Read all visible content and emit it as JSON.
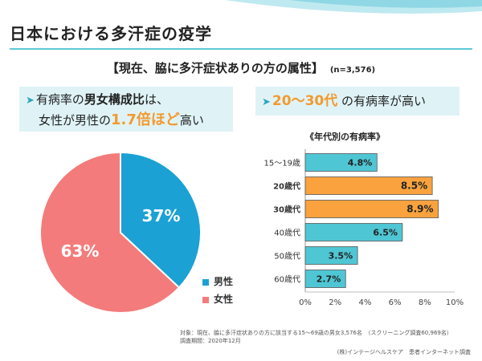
{
  "title": "日本における多汗症の疫学",
  "subtitle": {
    "text": "【現在、脇に多汗症状ありの方の属性】",
    "n": "(n=3,576)"
  },
  "callout_left": {
    "line1_pre": "有病率の",
    "line1_bold": "男女構成比",
    "line1_post": "は、",
    "line2_pre": "女性が男性の",
    "line2_highlight": "1.7倍ほど",
    "line2_post": "高い"
  },
  "callout_right": {
    "highlight": "20～30代",
    "post": " の有病率が高い"
  },
  "colors": {
    "accent": "#5fc8d8",
    "male": "#1ba1d4",
    "female": "#f47b7b",
    "bar_blue": "#4fc6d4",
    "bar_orange": "#f9a23e",
    "callout_bg": "#dff3f7",
    "orange_text": "#f29a2e"
  },
  "chart_data": [
    {
      "type": "pie",
      "labels": [
        "男性",
        "女性"
      ],
      "values": [
        37,
        63
      ],
      "value_labels": [
        "37%",
        "63%"
      ],
      "colors": [
        "#1ba1d4",
        "#f47b7b"
      ],
      "legend": "right-bottom"
    },
    {
      "type": "bar",
      "orientation": "horizontal",
      "title": "《年代別の有病率》",
      "categories": [
        "15～19歳",
        "20歳代",
        "30歳代",
        "40歳代",
        "50歳代",
        "60歳代"
      ],
      "highlight": [
        false,
        true,
        true,
        false,
        false,
        false
      ],
      "values": [
        4.8,
        8.5,
        8.9,
        6.5,
        3.5,
        2.7
      ],
      "value_labels": [
        "4.8%",
        "8.5%",
        "8.9%",
        "6.5%",
        "3.5%",
        "2.7%"
      ],
      "xlim": [
        0,
        10
      ],
      "xticks": [
        "0%",
        "2%",
        "4%",
        "6%",
        "8%",
        "10%"
      ],
      "grid": false
    }
  ],
  "footnote": {
    "line1": "対象：現在、脇に多汗症状ありの方に該当する15～69歳の男女3,576名　（スクリーニング調査60,969名）",
    "line2": "調査期間：2020年12月"
  },
  "source": "(株)インテージヘルスケア　患者インターネット調査"
}
